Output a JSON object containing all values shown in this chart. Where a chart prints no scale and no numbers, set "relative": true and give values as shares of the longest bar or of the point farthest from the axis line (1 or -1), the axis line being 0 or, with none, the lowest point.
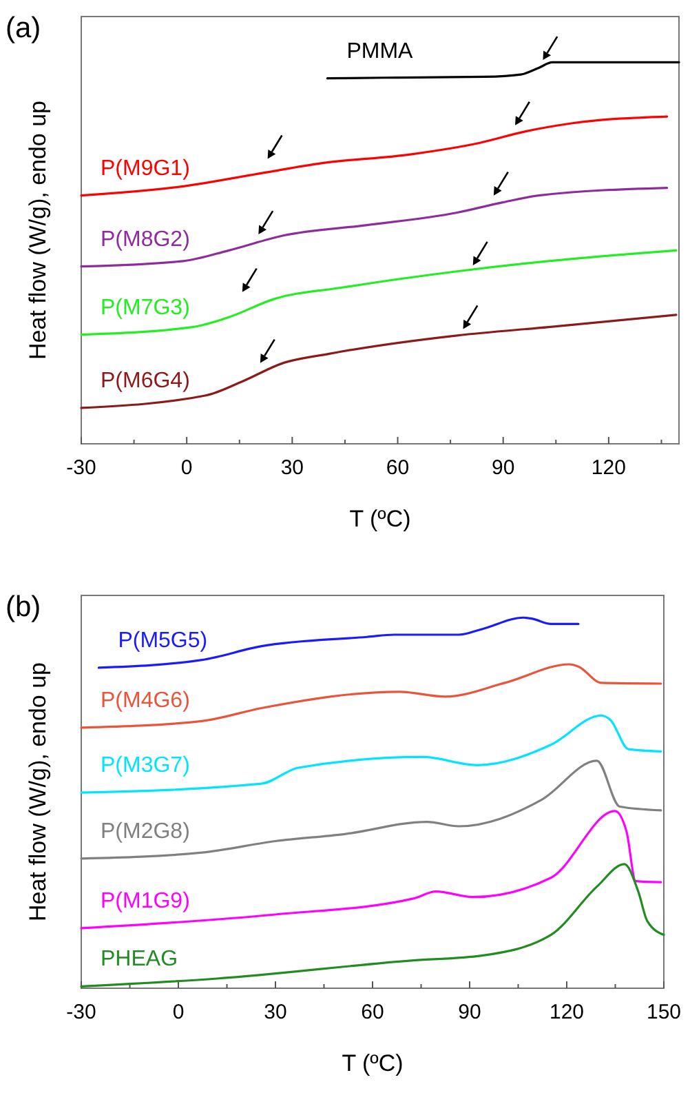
{
  "chart_data": [
    {
      "type": "line",
      "title": "(a)",
      "xlabel": "T (ºC)",
      "ylabel": "Heat flow (W/g), endo up",
      "relative": true,
      "xlim": [
        -30,
        140
      ],
      "xticks": [
        -30,
        {
          "value": -15,
          "label": null
        },
        0,
        {
          "value": 15,
          "label": null
        },
        30,
        {
          "value": 45,
          "label": null
        },
        60,
        {
          "value": 75,
          "label": null
        },
        90,
        {
          "value": 105,
          "label": null
        },
        120,
        {
          "value": 135,
          "label": null
        }
      ],
      "series": [
        {
          "name": "PMMA",
          "color": "#000000",
          "x": [
            40,
            60,
            85,
            95,
            100,
            104,
            120,
            140
          ],
          "values": [
            0.958,
            0.96,
            0.962,
            0.968,
            0.985,
            1,
            1,
            1
          ]
        },
        {
          "name": "P(M9G1)",
          "color": "#ff0000",
          "x": [
            -30,
            -1,
            22.3,
            37.9,
            63.9,
            83.4,
            96.4,
            109.4,
            136.6
          ],
          "values": [
            0.651,
            0.675,
            0.711,
            0.735,
            0.759,
            0.789,
            0.819,
            0.84,
            0.858
          ]
        },
        {
          "name": "P(M8G2)",
          "color": "#8e2c9e",
          "x": [
            -30,
            -1,
            12,
            27.5,
            50.9,
            76.9,
            89.9,
            100.2,
            136.6
          ],
          "values": [
            0.465,
            0.479,
            0.507,
            0.546,
            0.573,
            0.606,
            0.633,
            0.651,
            0.671
          ]
        },
        {
          "name": "P(M7G3)",
          "color": "#22ee22",
          "x": [
            -30,
            1.6,
            12,
            25,
            44.5,
            76.9,
            102.9,
            139.2
          ],
          "values": [
            0.286,
            0.306,
            0.332,
            0.38,
            0.41,
            0.452,
            0.479,
            0.507
          ]
        },
        {
          "name": "P(M6G4)",
          "color": "#8b1a1a",
          "x": [
            -30,
            5.5,
            15.9,
            27.5,
            40.5,
            76.9,
            102.9,
            139.2
          ],
          "values": [
            0.094,
            0.127,
            0.164,
            0.212,
            0.236,
            0.284,
            0.306,
            0.338
          ]
        }
      ]
    },
    {
      "type": "line",
      "title": "(b)",
      "xlabel": "T (ºC)",
      "ylabel": "Heat flow (W/g), endo up",
      "relative": true,
      "xlim": [
        -30,
        150
      ],
      "xticks": [
        -30,
        {
          "value": -15,
          "label": null
        },
        0,
        {
          "value": 15,
          "label": null
        },
        30,
        {
          "value": 45,
          "label": null
        },
        60,
        {
          "value": 75,
          "label": null
        },
        90,
        {
          "value": 105,
          "label": null
        },
        120,
        {
          "value": 135,
          "label": null
        },
        150
      ],
      "series": [
        {
          "name": "P(M5G5)",
          "color": "#1a1aff",
          "x": [
            -24.6,
            7.3,
            25.7,
            58.3,
            66.8,
            86.7,
            93.8,
            106.6,
            109.4,
            115.1,
            123.6
          ],
          "values": [
            0.865,
            0.886,
            0.923,
            0.948,
            0.954,
            0.954,
            0.969,
            1,
            0.997,
            0.983,
            0.983
          ]
        },
        {
          "name": "P(M4G6)",
          "color": "#e8553a",
          "x": [
            -30,
            7.3,
            25.7,
            68.3,
            82.5,
            100.9,
            120.8,
            123.6,
            130.7,
            149.1
          ],
          "values": [
            0.703,
            0.721,
            0.756,
            0.8,
            0.787,
            0.824,
            0.874,
            0.868,
            0.824,
            0.822
          ]
        },
        {
          "name": "P(M3G7)",
          "color": "#00e5ff",
          "x": [
            -30,
            25.7,
            37.1,
            75.4,
            92.4,
            115.1,
            130.7,
            133.5,
            139.1,
            149.1
          ],
          "values": [
            0.528,
            0.552,
            0.595,
            0.624,
            0.602,
            0.657,
            0.736,
            0.724,
            0.645,
            0.639
          ]
        },
        {
          "name": "P(M2G8)",
          "color": "#808080",
          "x": [
            -30,
            7.3,
            30,
            51.4,
            76.8,
            86.7,
            112.3,
            129.3,
            136.4,
            149.1
          ],
          "values": [
            0.35,
            0.366,
            0.397,
            0.416,
            0.449,
            0.437,
            0.509,
            0.614,
            0.49,
            0.48
          ]
        },
        {
          "name": "P(M1G9)",
          "color": "#ff00ff",
          "x": [
            -30,
            30,
            72.6,
            79.6,
            91,
            115.1,
            134.9,
            138.5,
            141.3,
            149.1
          ],
          "values": [
            0.162,
            0.199,
            0.242,
            0.261,
            0.246,
            0.298,
            0.478,
            0.422,
            0.289,
            0.286
          ]
        },
        {
          "name": "PHEAG",
          "color": "#228b22",
          "x": [
            -30,
            11.9,
            72.6,
            93.8,
            115.1,
            129.3,
            137.8,
            142.1,
            144.9,
            150
          ],
          "values": [
            0.005,
            0.026,
            0.075,
            0.088,
            0.144,
            0.274,
            0.335,
            0.261,
            0.181,
            0.144
          ]
        }
      ]
    }
  ]
}
